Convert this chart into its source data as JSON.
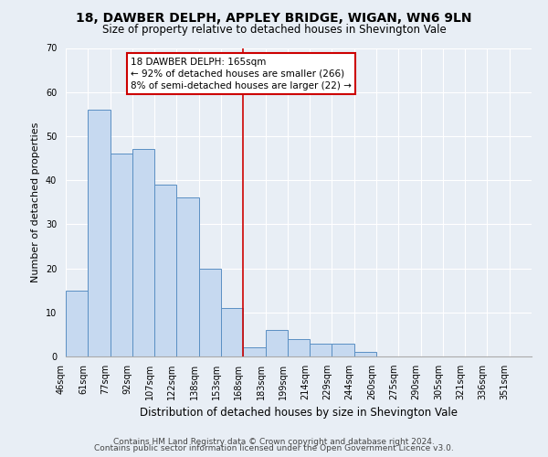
{
  "title1": "18, DAWBER DELPH, APPLEY BRIDGE, WIGAN, WN6 9LN",
  "title2": "Size of property relative to detached houses in Shevington Vale",
  "xlabel": "Distribution of detached houses by size in Shevington Vale",
  "ylabel": "Number of detached properties",
  "bar_labels": [
    "46sqm",
    "61sqm",
    "77sqm",
    "92sqm",
    "107sqm",
    "122sqm",
    "138sqm",
    "153sqm",
    "168sqm",
    "183sqm",
    "199sqm",
    "214sqm",
    "229sqm",
    "244sqm",
    "260sqm",
    "275sqm",
    "290sqm",
    "305sqm",
    "321sqm",
    "336sqm",
    "351sqm"
  ],
  "bar_heights": [
    15,
    56,
    46,
    47,
    39,
    36,
    20,
    11,
    2,
    6,
    4,
    3,
    3,
    1,
    0,
    0,
    0,
    0,
    0,
    0,
    0
  ],
  "bar_color": "#c6d9f0",
  "bar_edge_color": "#5a8fc3",
  "vline_x_index": 8,
  "vline_color": "#cc0000",
  "annotation_title": "18 DAWBER DELPH: 165sqm",
  "annotation_line1": "← 92% of detached houses are smaller (266)",
  "annotation_line2": "8% of semi-detached houses are larger (22) →",
  "annotation_box_color": "#ffffff",
  "annotation_box_edge": "#cc0000",
  "footer1": "Contains HM Land Registry data © Crown copyright and database right 2024.",
  "footer2": "Contains public sector information licensed under the Open Government Licence v3.0.",
  "ylim": [
    0,
    70
  ],
  "yticks": [
    0,
    10,
    20,
    30,
    40,
    50,
    60,
    70
  ],
  "background_color": "#e8eef5",
  "grid_color": "#ffffff",
  "title1_fontsize": 10,
  "title2_fontsize": 8.5,
  "xlabel_fontsize": 8.5,
  "ylabel_fontsize": 8,
  "tick_fontsize": 7,
  "footer_fontsize": 6.5
}
